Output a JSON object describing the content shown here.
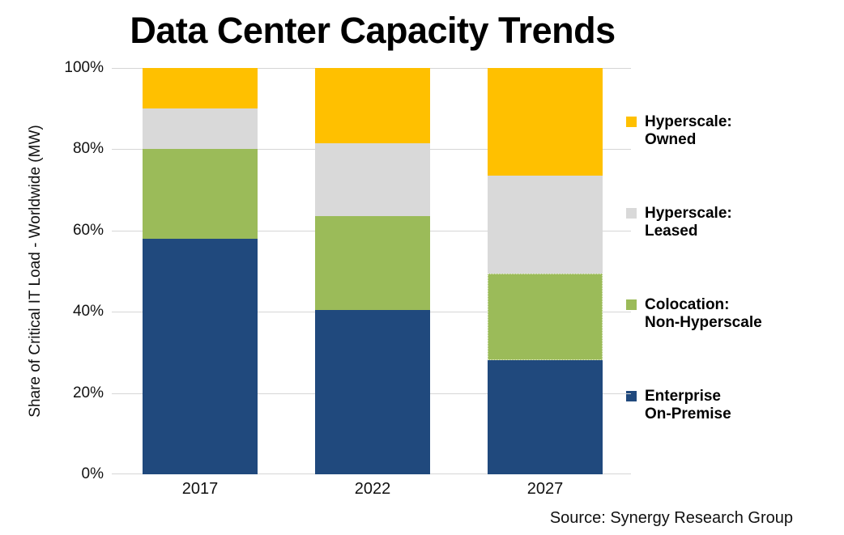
{
  "chart_data": {
    "type": "bar",
    "stacked": true,
    "title": "Data Center Capacity Trends",
    "xlabel": "",
    "ylabel": "Share of Critical IT Load - Worldwide (MW)",
    "source": "Source: Synergy Research Group",
    "categories": [
      "2017",
      "2022",
      "2027"
    ],
    "ylim": [
      0,
      100
    ],
    "y_tick_values": [
      0,
      20,
      40,
      60,
      80,
      100
    ],
    "y_tick_labels": [
      "0%",
      "20%",
      "40%",
      "60%",
      "80%",
      "100%"
    ],
    "grid": "horizontal",
    "legend_position": "right",
    "colors": {
      "enterprise_blue": "#20497D",
      "colocation_green": "#9BBB59",
      "hyperscale_leased_gray": "#D9D9D9",
      "hyperscale_owned_yellow": "#FFC000",
      "gridline_gray": "#D6D6D6"
    },
    "series": [
      {
        "name": "Enterprise On-Premise",
        "color": "#20497D",
        "values": [
          58,
          40.5,
          28
        ]
      },
      {
        "name": "Colocation: Non-Hyperscale",
        "color": "#9BBB59",
        "values": [
          22,
          23,
          21.5
        ],
        "dotted_outline_on": [
          "2027"
        ]
      },
      {
        "name": "Hyperscale: Leased",
        "color": "#D9D9D9",
        "values": [
          10,
          18,
          24
        ]
      },
      {
        "name": "Hyperscale: Owned",
        "color": "#FFC000",
        "values": [
          10,
          18.5,
          26.5
        ]
      }
    ],
    "legend": [
      {
        "label_line1": "Hyperscale:",
        "label_line2": "Owned",
        "color": "#FFC000"
      },
      {
        "label_line1": "Hyperscale:",
        "label_line2": "Leased",
        "color": "#D9D9D9"
      },
      {
        "label_line1": "Colocation:",
        "label_line2": "Non-Hyperscale",
        "color": "#9BBB59"
      },
      {
        "label_line1": "Enterprise",
        "label_line2": "On-Premise",
        "color": "#20497D"
      }
    ]
  }
}
